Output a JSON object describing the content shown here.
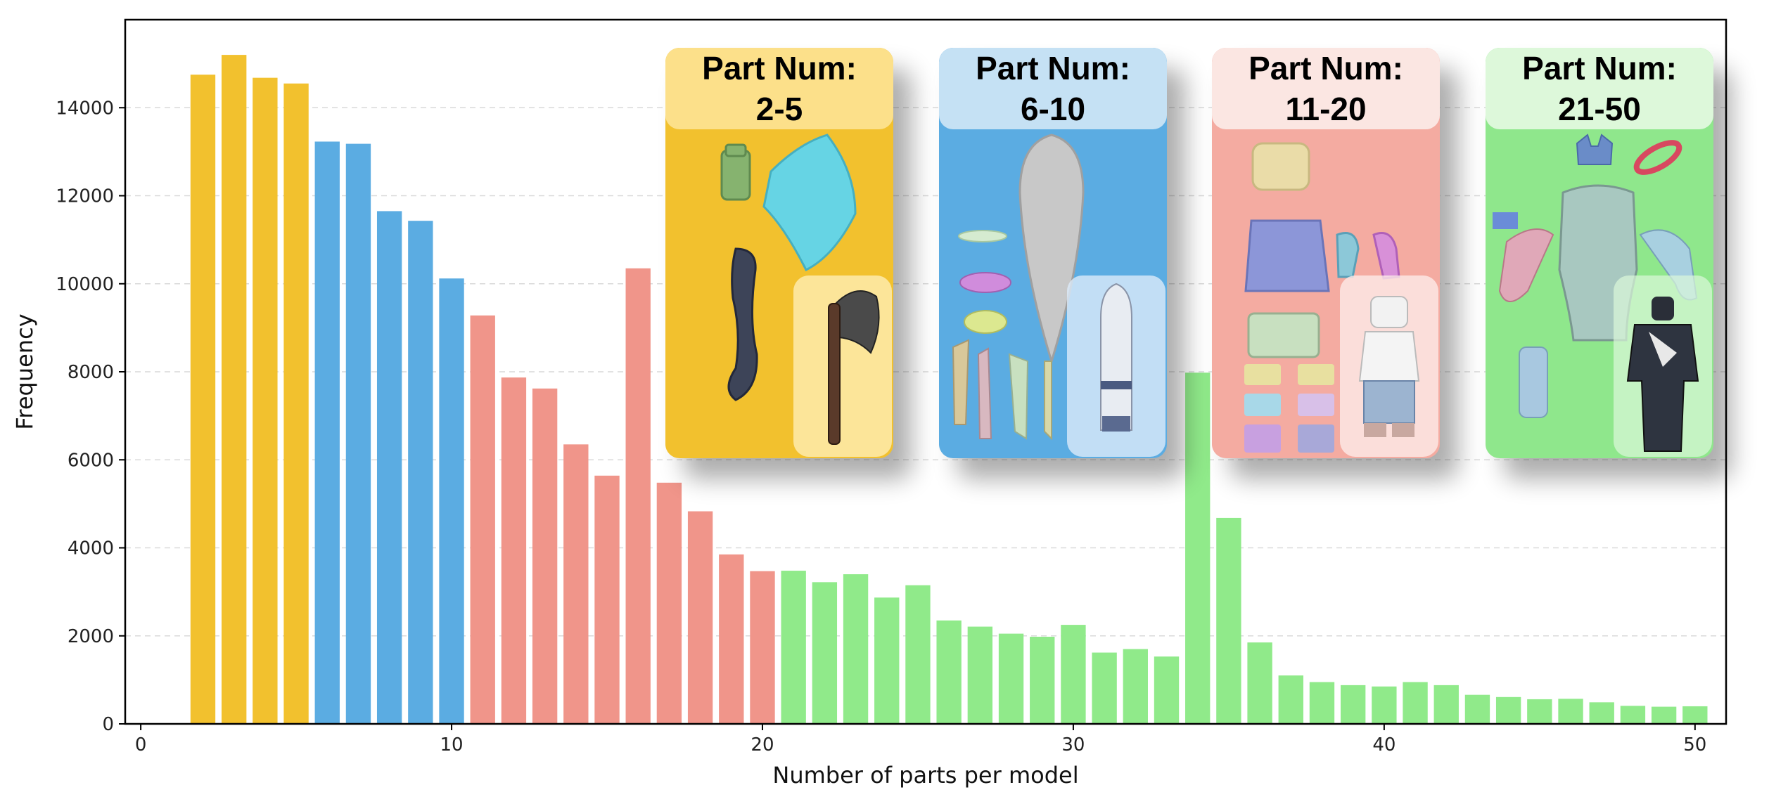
{
  "chart_data": {
    "type": "bar",
    "xlabel": "Number of parts per model",
    "ylabel": "Frequency",
    "xlim": [
      -0.5,
      51
    ],
    "ylim": [
      0,
      16000
    ],
    "xticks": [
      0,
      10,
      20,
      30,
      40,
      50
    ],
    "yticks": [
      0,
      2000,
      4000,
      6000,
      8000,
      10000,
      12000,
      14000
    ],
    "grid": "horizontal dashed",
    "x": [
      2,
      3,
      4,
      5,
      6,
      7,
      8,
      9,
      10,
      11,
      12,
      13,
      14,
      15,
      16,
      17,
      18,
      19,
      20,
      21,
      22,
      23,
      24,
      25,
      26,
      27,
      28,
      29,
      30,
      31,
      32,
      33,
      34,
      35,
      36,
      37,
      38,
      39,
      40,
      41,
      42,
      43,
      44,
      45,
      46,
      47,
      48,
      49,
      50
    ],
    "values": [
      14750,
      15200,
      14680,
      14550,
      13230,
      13180,
      11650,
      11430,
      10120,
      9280,
      7870,
      7620,
      6350,
      5640,
      10350,
      5480,
      4830,
      3850,
      3470,
      3480,
      3220,
      3400,
      2870,
      3150,
      2350,
      2210,
      2050,
      1980,
      2250,
      1620,
      1700,
      1530,
      7980,
      4680,
      1850,
      1100,
      950,
      880,
      850,
      950,
      880,
      660,
      610,
      560,
      570,
      490,
      410,
      390,
      400
    ],
    "groups": [
      {
        "title": "Part Num:",
        "range": "2-5",
        "from": 2,
        "to": 5,
        "bar_color": "#F2C12E",
        "card_color": "#F2C12E",
        "header_color": "#FCE08A"
      },
      {
        "title": "Part Num:",
        "range": "6-10",
        "from": 6,
        "to": 10,
        "bar_color": "#5BACE2",
        "card_color": "#5BACE2",
        "header_color": "#C5E1F4"
      },
      {
        "title": "Part Num:",
        "range": "11-20",
        "from": 11,
        "to": 20,
        "bar_color": "#F0958A",
        "card_color": "#F4ABA1",
        "header_color": "#FBE6E2"
      },
      {
        "title": "Part Num:",
        "range": "21-50",
        "from": 21,
        "to": 50,
        "bar_color": "#90EA8A",
        "card_color": "#8FE78C",
        "header_color": "#DDF8DA"
      }
    ]
  }
}
